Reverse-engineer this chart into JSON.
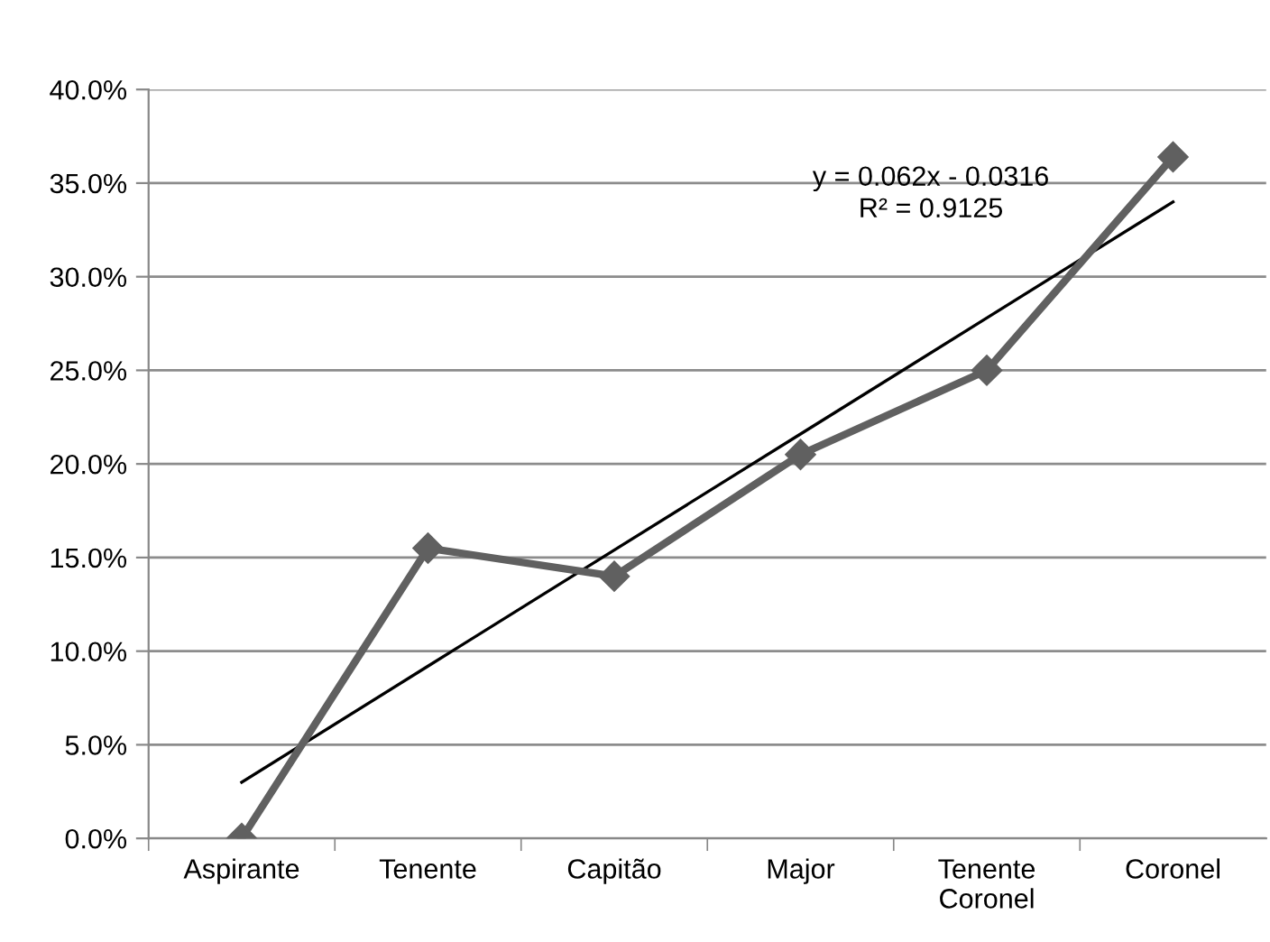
{
  "chart_data": {
    "type": "line",
    "categories": [
      "Aspirante",
      "Tenente",
      "Capitão",
      "Major",
      "Tenente\nCoronel",
      "Coronel"
    ],
    "series": [
      {
        "color": "#606060",
        "values": [
          0.0,
          15.5,
          14.0,
          20.5,
          25.0,
          36.4
        ],
        "marker": "diamond",
        "line_style": "solid"
      },
      {
        "color": "#000000",
        "values": [
          3.0,
          9.2,
          15.4,
          21.6,
          27.8,
          34.0
        ],
        "marker": "none",
        "line_style": "solid"
      }
    ],
    "ylim": [
      0,
      40
    ],
    "yticks": [
      {
        "value": 0,
        "label": "0.0%"
      },
      {
        "value": 5,
        "label": "5.0%"
      },
      {
        "value": 10,
        "label": "10.0%"
      },
      {
        "value": 15,
        "label": "15.0%"
      },
      {
        "value": 20,
        "label": "20.0%"
      },
      {
        "value": 25,
        "label": "25.0%"
      },
      {
        "value": 30,
        "label": "30.0%"
      },
      {
        "value": 35,
        "label": "35.0%"
      },
      {
        "value": 40,
        "label": "40.0%"
      }
    ],
    "grid": "y",
    "legend": false,
    "annotations": [
      "y = 0.062x - 0.0316\nR² = 0.9125"
    ]
  }
}
